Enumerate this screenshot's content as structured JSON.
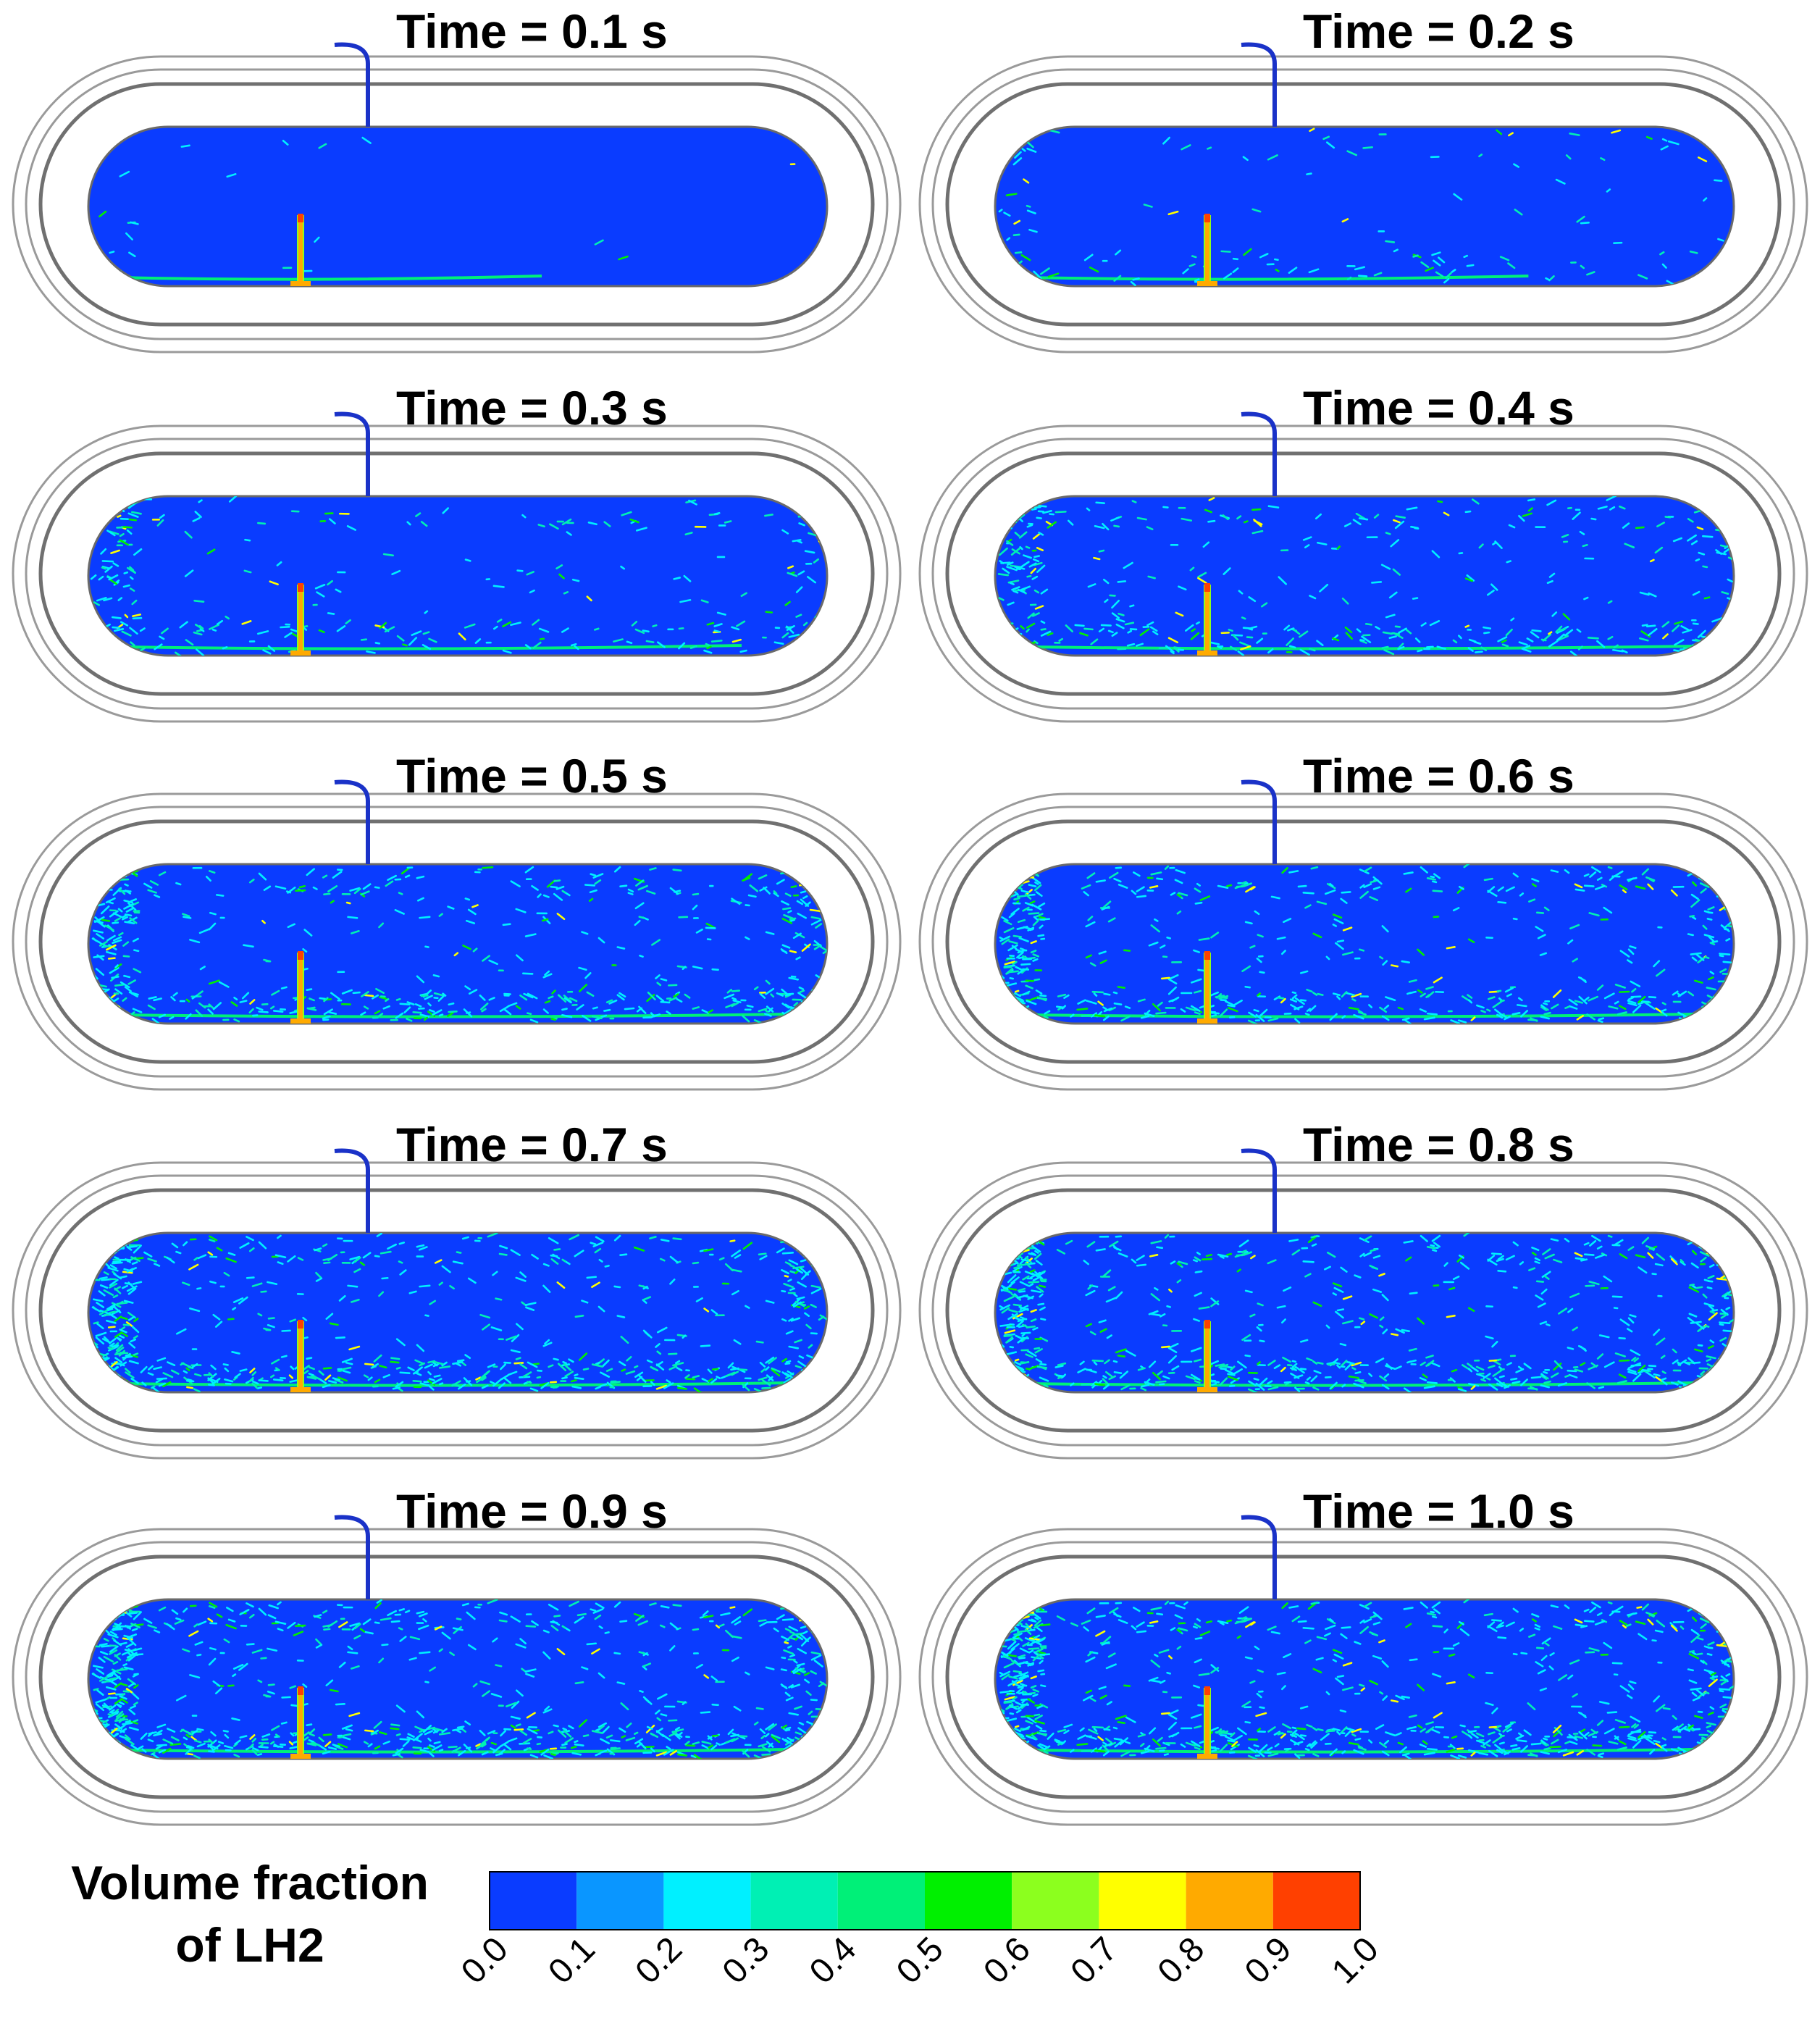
{
  "panels": [
    {
      "label": "Time = 0.1 s",
      "stage": 0.0
    },
    {
      "label": "Time = 0.2 s",
      "stage": 0.12
    },
    {
      "label": "Time = 0.3 s",
      "stage": 0.3
    },
    {
      "label": "Time = 0.4 s",
      "stage": 0.45
    },
    {
      "label": "Time = 0.5 s",
      "stage": 0.6
    },
    {
      "label": "Time = 0.6 s",
      "stage": 0.68
    },
    {
      "label": "Time = 0.7 s",
      "stage": 0.78
    },
    {
      "label": "Time = 0.8 s",
      "stage": 0.85
    },
    {
      "label": "Time = 0.9 s",
      "stage": 0.92
    },
    {
      "label": "Time = 1.0 s",
      "stage": 1.0
    }
  ],
  "colorbar": {
    "title_line1": "Volume fraction",
    "title_line2": "of LH2",
    "colors": [
      "#0a3cff",
      "#0a96ff",
      "#00f0ff",
      "#00f0b4",
      "#00f078",
      "#00f000",
      "#8cff1e",
      "#ffff00",
      "#ffaa00",
      "#ff4000"
    ],
    "ticks": [
      "0.0",
      "0.1",
      "0.2",
      "0.3",
      "0.4",
      "0.5",
      "0.6",
      "0.7",
      "0.8",
      "0.9",
      "1.0"
    ]
  },
  "colors": {
    "tank_fill": "#0a3cff",
    "vent_pipe": "#1a32c8",
    "outline": "#9a9a9a",
    "background": "#ffffff"
  }
}
